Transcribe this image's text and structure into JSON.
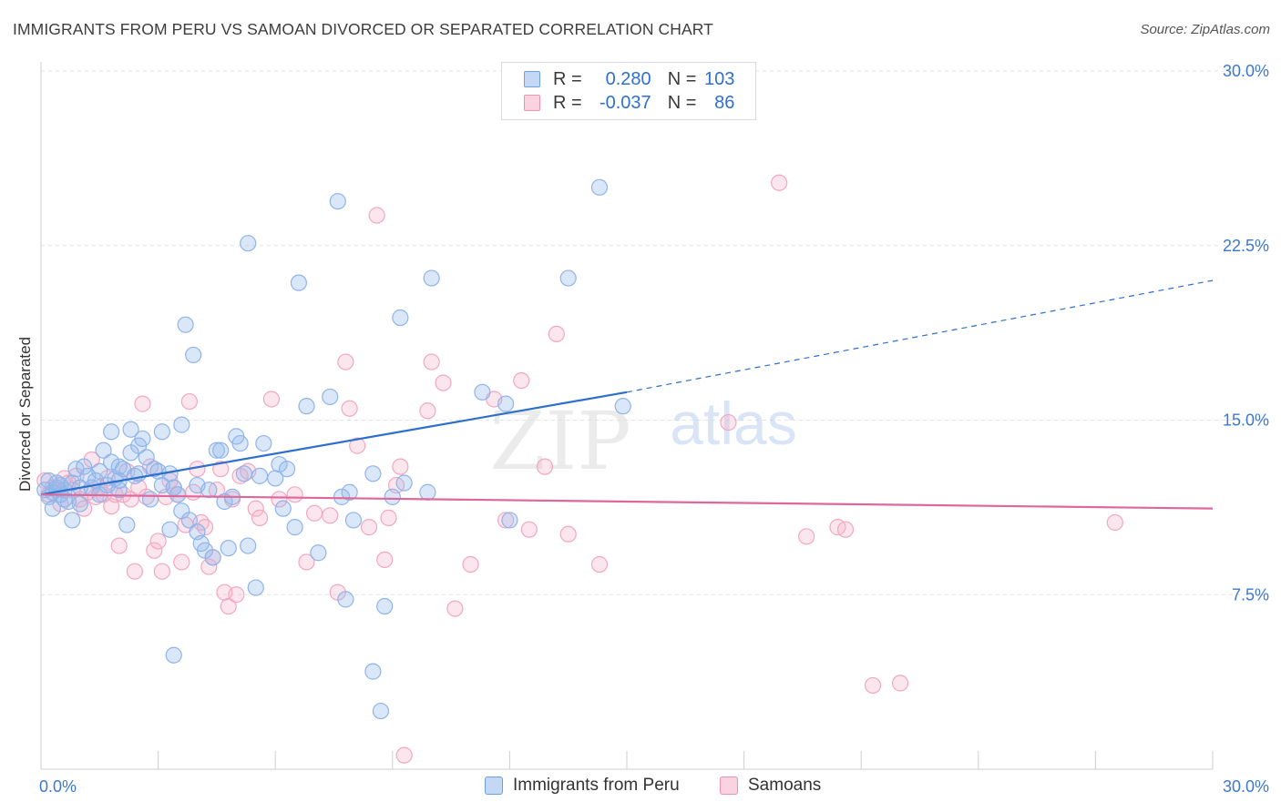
{
  "title": "IMMIGRANTS FROM PERU VS SAMOAN DIVORCED OR SEPARATED CORRELATION CHART",
  "source": "Source: ZipAtlas.com",
  "watermark_zip": "ZIP",
  "watermark_atlas": "atlas",
  "legend": {
    "r_label": "R =",
    "n_label": "N =",
    "rows": [
      {
        "r": "0.280",
        "n": "103",
        "color": "#6ea0e6",
        "fill": "#c4d8f5"
      },
      {
        "r": "-0.037",
        "n": "86",
        "color": "#ee90b0",
        "fill": "#fbd2df"
      }
    ]
  },
  "bottom_legend": [
    "Immigrants from Peru",
    "Samoans"
  ],
  "colors": {
    "blue_stroke": "#8fb4ea",
    "blue_fill": "rgba(150,185,235,0.35)",
    "blue_line": "#2d6fcc",
    "pink_stroke": "#f2a7c0",
    "pink_fill": "rgba(246,180,203,0.33)",
    "pink_line": "#e0679a",
    "tick_label": "#3d78cf",
    "grid": "#e3e3e3"
  },
  "chart_data": {
    "type": "scatter",
    "title": "IMMIGRANTS FROM PERU VS SAMOAN DIVORCED OR SEPARATED CORRELATION CHART",
    "xlabel": "",
    "ylabel": "Divorced or Separated",
    "xlim": [
      0,
      30
    ],
    "ylim": [
      0,
      30
    ],
    "x_tick_labels": [
      "0.0%",
      "30.0%"
    ],
    "y_ticks": [
      7.5,
      15.0,
      22.5,
      30.0
    ],
    "y_tick_labels": [
      "7.5%",
      "15.0%",
      "22.5%",
      "30.0%"
    ],
    "grid": "horizontal dashed",
    "legend_position": "top-center",
    "series": [
      {
        "name": "Immigrants from Peru",
        "R": 0.28,
        "N": 103,
        "trend": {
          "x0": 0.0,
          "y0": 11.8,
          "x1": 15.0,
          "y1": 16.2,
          "dashed_to_x": 30.0,
          "dashed_to_y": 21.0
        },
        "points": [
          [
            0.1,
            12.0
          ],
          [
            0.2,
            11.7
          ],
          [
            0.2,
            12.4
          ],
          [
            0.3,
            11.9
          ],
          [
            0.3,
            11.2
          ],
          [
            0.4,
            12.1
          ],
          [
            0.5,
            11.8
          ],
          [
            0.5,
            12.2
          ],
          [
            0.6,
            12.0
          ],
          [
            0.7,
            11.5
          ],
          [
            0.8,
            10.7
          ],
          [
            0.8,
            12.3
          ],
          [
            0.9,
            12.9
          ],
          [
            1.0,
            12.1
          ],
          [
            1.0,
            11.4
          ],
          [
            1.1,
            13.0
          ],
          [
            1.2,
            12.6
          ],
          [
            1.3,
            12.1
          ],
          [
            1.4,
            12.4
          ],
          [
            1.5,
            11.8
          ],
          [
            1.6,
            13.7
          ],
          [
            1.7,
            12.2
          ],
          [
            1.8,
            13.2
          ],
          [
            1.8,
            14.5
          ],
          [
            1.9,
            12.5
          ],
          [
            2.0,
            12.0
          ],
          [
            2.0,
            13.0
          ],
          [
            2.1,
            12.9
          ],
          [
            2.2,
            10.5
          ],
          [
            2.3,
            13.6
          ],
          [
            2.3,
            14.6
          ],
          [
            2.4,
            12.6
          ],
          [
            2.5,
            13.9
          ],
          [
            2.5,
            12.7
          ],
          [
            2.6,
            14.2
          ],
          [
            2.7,
            13.4
          ],
          [
            2.8,
            11.6
          ],
          [
            2.9,
            12.9
          ],
          [
            3.0,
            12.8
          ],
          [
            3.1,
            14.5
          ],
          [
            3.1,
            12.2
          ],
          [
            3.3,
            10.3
          ],
          [
            3.3,
            12.7
          ],
          [
            3.4,
            12.1
          ],
          [
            3.5,
            11.8
          ],
          [
            3.6,
            11.1
          ],
          [
            3.6,
            14.8
          ],
          [
            3.7,
            19.1
          ],
          [
            3.8,
            10.7
          ],
          [
            3.9,
            17.8
          ],
          [
            4.0,
            12.2
          ],
          [
            4.0,
            10.2
          ],
          [
            4.1,
            9.7
          ],
          [
            4.2,
            9.4
          ],
          [
            4.3,
            12.0
          ],
          [
            4.4,
            9.1
          ],
          [
            4.5,
            13.7
          ],
          [
            4.6,
            13.7
          ],
          [
            4.7,
            11.5
          ],
          [
            4.8,
            9.5
          ],
          [
            4.9,
            11.7
          ],
          [
            5.0,
            14.3
          ],
          [
            5.1,
            14.0
          ],
          [
            5.2,
            12.7
          ],
          [
            5.3,
            9.6
          ],
          [
            5.3,
            22.6
          ],
          [
            5.5,
            7.8
          ],
          [
            5.6,
            12.6
          ],
          [
            5.7,
            14.0
          ],
          [
            6.0,
            12.5
          ],
          [
            6.1,
            13.1
          ],
          [
            6.3,
            12.9
          ],
          [
            6.5,
            10.4
          ],
          [
            6.6,
            20.9
          ],
          [
            6.8,
            15.6
          ],
          [
            7.1,
            9.3
          ],
          [
            7.4,
            16.0
          ],
          [
            7.6,
            24.4
          ],
          [
            7.7,
            11.7
          ],
          [
            7.8,
            7.3
          ],
          [
            7.9,
            11.9
          ],
          [
            8.0,
            10.7
          ],
          [
            8.5,
            12.7
          ],
          [
            8.5,
            4.2
          ],
          [
            8.7,
            2.5
          ],
          [
            8.8,
            7.0
          ],
          [
            9.0,
            11.7
          ],
          [
            9.2,
            19.4
          ],
          [
            9.3,
            12.3
          ],
          [
            9.9,
            11.9
          ],
          [
            10.0,
            21.1
          ],
          [
            11.3,
            16.2
          ],
          [
            11.9,
            15.7
          ],
          [
            12.0,
            10.7
          ],
          [
            13.5,
            21.1
          ],
          [
            14.3,
            25.0
          ],
          [
            14.9,
            15.6
          ],
          [
            0.4,
            12.3
          ],
          [
            0.6,
            11.6
          ],
          [
            1.5,
            12.8
          ],
          [
            3.4,
            4.9
          ],
          [
            2.0,
            12.4
          ],
          [
            6.2,
            11.2
          ]
        ]
      },
      {
        "name": "Samoans",
        "R": -0.037,
        "N": 86,
        "trend": {
          "x0": 0.0,
          "y0": 11.8,
          "x1": 30.0,
          "y1": 11.2
        },
        "points": [
          [
            0.1,
            12.4
          ],
          [
            0.2,
            11.8
          ],
          [
            0.3,
            12.1
          ],
          [
            0.4,
            12.0
          ],
          [
            0.5,
            11.4
          ],
          [
            0.6,
            12.5
          ],
          [
            0.7,
            12.3
          ],
          [
            0.8,
            12.0
          ],
          [
            0.9,
            12.6
          ],
          [
            1.0,
            11.6
          ],
          [
            1.1,
            11.2
          ],
          [
            1.2,
            11.9
          ],
          [
            1.3,
            13.3
          ],
          [
            1.4,
            11.7
          ],
          [
            1.5,
            12.1
          ],
          [
            1.6,
            11.8
          ],
          [
            1.7,
            12.5
          ],
          [
            1.8,
            11.3
          ],
          [
            1.9,
            11.8
          ],
          [
            2.0,
            9.6
          ],
          [
            2.1,
            11.8
          ],
          [
            2.2,
            12.8
          ],
          [
            2.3,
            11.6
          ],
          [
            2.4,
            8.5
          ],
          [
            2.5,
            12.1
          ],
          [
            2.6,
            15.7
          ],
          [
            2.7,
            11.7
          ],
          [
            2.8,
            13.0
          ],
          [
            2.9,
            9.4
          ],
          [
            3.0,
            9.8
          ],
          [
            3.1,
            8.5
          ],
          [
            3.2,
            11.7
          ],
          [
            3.3,
            12.4
          ],
          [
            3.4,
            12.1
          ],
          [
            3.5,
            11.8
          ],
          [
            3.6,
            8.9
          ],
          [
            3.7,
            10.5
          ],
          [
            3.8,
            15.8
          ],
          [
            3.9,
            11.9
          ],
          [
            4.0,
            12.9
          ],
          [
            4.1,
            10.6
          ],
          [
            4.2,
            10.4
          ],
          [
            4.3,
            8.7
          ],
          [
            4.4,
            9.1
          ],
          [
            4.5,
            12.0
          ],
          [
            4.6,
            12.9
          ],
          [
            4.7,
            7.6
          ],
          [
            4.8,
            7.0
          ],
          [
            4.9,
            11.6
          ],
          [
            5.0,
            7.5
          ],
          [
            5.1,
            12.6
          ],
          [
            5.3,
            12.8
          ],
          [
            5.5,
            11.2
          ],
          [
            5.6,
            10.8
          ],
          [
            5.9,
            15.9
          ],
          [
            6.1,
            11.6
          ],
          [
            6.5,
            11.8
          ],
          [
            6.8,
            8.9
          ],
          [
            7.0,
            11.0
          ],
          [
            7.4,
            10.9
          ],
          [
            7.6,
            7.6
          ],
          [
            7.8,
            17.5
          ],
          [
            7.9,
            15.5
          ],
          [
            8.1,
            13.9
          ],
          [
            8.4,
            10.4
          ],
          [
            8.6,
            23.8
          ],
          [
            8.8,
            9.0
          ],
          [
            8.9,
            10.8
          ],
          [
            9.1,
            12.2
          ],
          [
            9.2,
            13.0
          ],
          [
            9.3,
            0.6
          ],
          [
            9.9,
            15.4
          ],
          [
            10.0,
            17.5
          ],
          [
            10.3,
            16.6
          ],
          [
            10.6,
            6.9
          ],
          [
            11.0,
            8.8
          ],
          [
            11.6,
            15.9
          ],
          [
            11.9,
            10.7
          ],
          [
            12.3,
            16.7
          ],
          [
            12.5,
            10.3
          ],
          [
            12.9,
            13.0
          ],
          [
            13.2,
            18.7
          ],
          [
            13.5,
            10.1
          ],
          [
            14.3,
            8.8
          ],
          [
            17.6,
            14.9
          ],
          [
            18.9,
            25.2
          ],
          [
            19.6,
            10.0
          ],
          [
            20.4,
            10.4
          ],
          [
            20.6,
            10.3
          ],
          [
            21.3,
            3.6
          ],
          [
            22.0,
            3.7
          ],
          [
            27.5,
            10.6
          ]
        ]
      }
    ]
  }
}
